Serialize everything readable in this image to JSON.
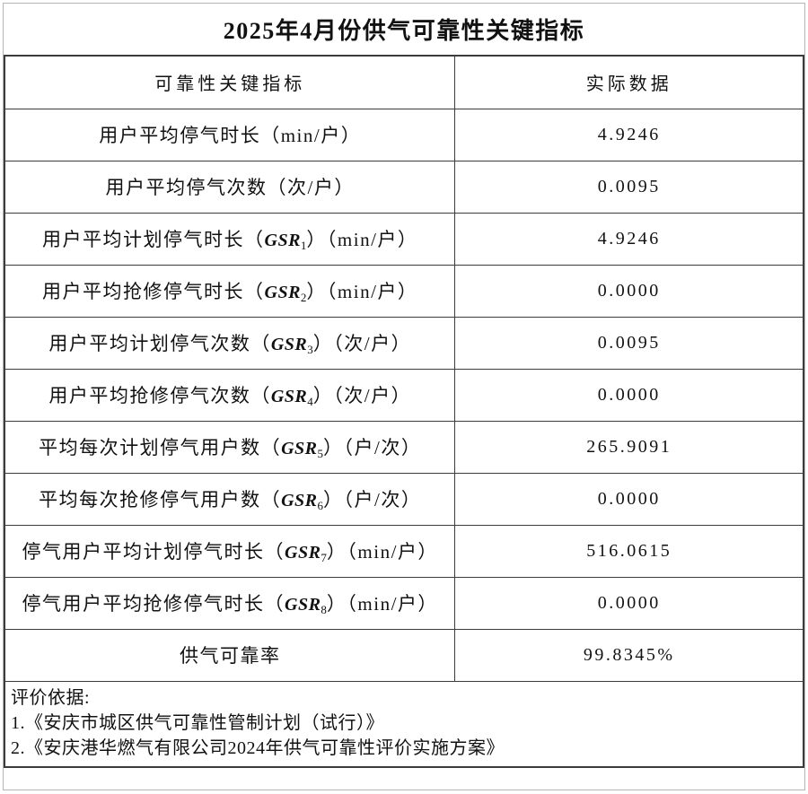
{
  "title": "2025年4月份供气可靠性关键指标",
  "colors": {
    "border_dark": "#3c3c3c",
    "border_light": "#b5b5b5",
    "text": "#111111",
    "background": "#ffffff"
  },
  "table": {
    "headers": {
      "indicator": "可靠性关键指标",
      "value": "实际数据"
    },
    "rows": [
      {
        "pre": "用户平均停气时长（min/户）",
        "gsr": "",
        "sub": "",
        "post": "",
        "value": "4.9246"
      },
      {
        "pre": "用户平均停气次数（次/户）",
        "gsr": "",
        "sub": "",
        "post": "",
        "value": "0.0095"
      },
      {
        "pre": "用户平均计划停气时长（",
        "gsr": "GSR",
        "sub": "1",
        "post": "）（min/户）",
        "value": "4.9246"
      },
      {
        "pre": "用户平均抢修停气时长（",
        "gsr": "GSR",
        "sub": "2",
        "post": "）（min/户）",
        "value": "0.0000"
      },
      {
        "pre": "用户平均计划停气次数（",
        "gsr": "GSR",
        "sub": "3",
        "post": "）（次/户）",
        "value": "0.0095"
      },
      {
        "pre": "用户平均抢修停气次数（",
        "gsr": "GSR",
        "sub": "4",
        "post": "）（次/户）",
        "value": "0.0000"
      },
      {
        "pre": "平均每次计划停气用户数（",
        "gsr": "GSR",
        "sub": "5",
        "post": "）（户/次）",
        "value": "265.9091"
      },
      {
        "pre": "平均每次抢修停气用户数（",
        "gsr": "GSR",
        "sub": "6",
        "post": "）（户/次）",
        "value": "0.0000"
      },
      {
        "pre": "停气用户平均计划停气时长（",
        "gsr": "GSR",
        "sub": "7",
        "post": "）（min/户）",
        "value": "516.0615"
      },
      {
        "pre": "停气用户平均抢修停气时长（",
        "gsr": "GSR",
        "sub": "8",
        "post": "）（min/户）",
        "value": "0.0000"
      },
      {
        "pre": "供气可靠率",
        "gsr": "",
        "sub": "",
        "post": "",
        "value": "99.8345%"
      }
    ]
  },
  "footer": {
    "heading": "评价依据:",
    "items": [
      "1.《安庆市城区供气可靠性管制计划（试行）》",
      "2.《安庆港华燃气有限公司2024年供气可靠性评价实施方案》"
    ]
  }
}
